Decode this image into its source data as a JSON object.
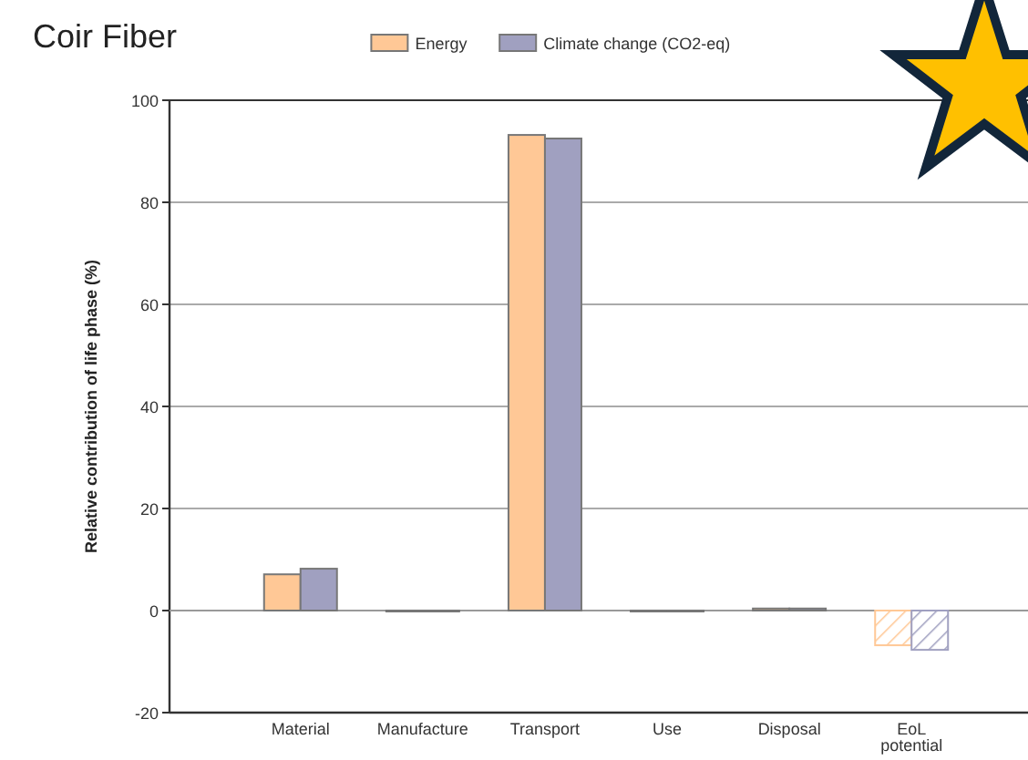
{
  "chart_data": {
    "type": "bar",
    "title": "Coir Fiber",
    "ylabel": "Relative contribution of life phase (%)",
    "categories": [
      "Material",
      "Manufacture",
      "Transport",
      "Use",
      "Disposal",
      "EoL potential"
    ],
    "series": [
      {
        "name": "Energy",
        "color": "#ffc896",
        "values": [
          7.1,
          0,
          93.2,
          0,
          0.4,
          -6.8
        ]
      },
      {
        "name": "Climate change (CO2-eq)",
        "color": "#a0a0c0",
        "values": [
          8.2,
          0,
          92.5,
          0,
          0.4,
          -7.7
        ]
      }
    ],
    "ylim": [
      -20,
      100
    ],
    "yticks": [
      -20,
      0,
      20,
      40,
      60,
      80,
      100
    ],
    "grid": "y",
    "legend": "top"
  }
}
